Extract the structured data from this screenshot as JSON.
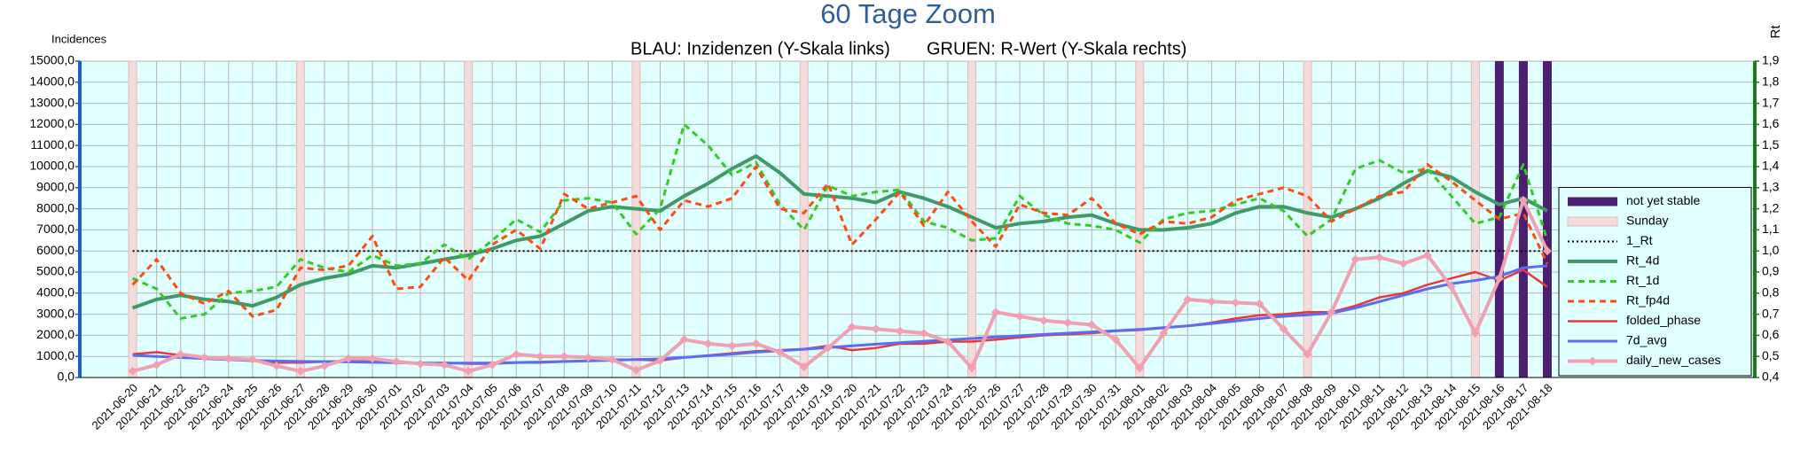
{
  "chart_data": {
    "type": "line",
    "title": "60 Tage Zoom",
    "subtitles": [
      "BLAU: Inzidenzen (Y-Skala links)",
      "GRUEN: R-Wert (Y-Skala rechts)"
    ],
    "y_label": "Incidences",
    "y2_label": "Rt",
    "categories": [
      "2021-06-20",
      "2021-06-21",
      "2021-06-22",
      "2021-06-23",
      "2021-06-24",
      "2021-06-25",
      "2021-06-26",
      "2021-06-27",
      "2021-06-28",
      "2021-06-29",
      "2021-06-30",
      "2021-07-01",
      "2021-07-02",
      "2021-07-03",
      "2021-07-04",
      "2021-07-05",
      "2021-07-06",
      "2021-07-07",
      "2021-07-08",
      "2021-07-09",
      "2021-07-10",
      "2021-07-11",
      "2021-07-12",
      "2021-07-13",
      "2021-07-14",
      "2021-07-15",
      "2021-07-16",
      "2021-07-17",
      "2021-07-18",
      "2021-07-19",
      "2021-07-20",
      "2021-07-21",
      "2021-07-22",
      "2021-07-23",
      "2021-07-24",
      "2021-07-25",
      "2021-07-26",
      "2021-07-27",
      "2021-07-28",
      "2021-07-29",
      "2021-07-30",
      "2021-07-31",
      "2021-08-01",
      "2021-08-02",
      "2021-08-03",
      "2021-08-04",
      "2021-08-05",
      "2021-08-06",
      "2021-08-07",
      "2021-08-08",
      "2021-08-09",
      "2021-08-10",
      "2021-08-11",
      "2021-08-12",
      "2021-08-13",
      "2021-08-14",
      "2021-08-15",
      "2021-08-16",
      "2021-08-17",
      "2021-08-18"
    ],
    "ylim": [
      0,
      15000
    ],
    "yticks": [
      {
        "value": 0,
        "label": "0,0"
      },
      {
        "value": 1000,
        "label": "1000,0"
      },
      {
        "value": 2000,
        "label": "2000,0"
      },
      {
        "value": 3000,
        "label": "3000,0"
      },
      {
        "value": 4000,
        "label": "4000,0"
      },
      {
        "value": 5000,
        "label": "5000,0"
      },
      {
        "value": 6000,
        "label": "6000,0"
      },
      {
        "value": 7000,
        "label": "7000,0"
      },
      {
        "value": 8000,
        "label": "8000,0"
      },
      {
        "value": 9000,
        "label": "9000,0"
      },
      {
        "value": 10000,
        "label": "10000,0"
      },
      {
        "value": 11000,
        "label": "11000,0"
      },
      {
        "value": 12000,
        "label": "12000,0"
      },
      {
        "value": 13000,
        "label": "13000,0"
      },
      {
        "value": 14000,
        "label": "14000,0"
      },
      {
        "value": 15000,
        "label": "15000,0"
      }
    ],
    "y2lim": [
      0.4,
      1.9
    ],
    "y2ticks": [
      {
        "value": 0.4,
        "label": "0,4"
      },
      {
        "value": 0.5,
        "label": "0,5"
      },
      {
        "value": 0.6,
        "label": "0,6"
      },
      {
        "value": 0.7,
        "label": "0,7"
      },
      {
        "value": 0.8,
        "label": "0,8"
      },
      {
        "value": 0.9,
        "label": "0,9"
      },
      {
        "value": 1.0,
        "label": "1,0"
      },
      {
        "value": 1.1,
        "label": "1,1"
      },
      {
        "value": 1.2,
        "label": "1,2"
      },
      {
        "value": 1.3,
        "label": "1,3"
      },
      {
        "value": 1.4,
        "label": "1,4"
      },
      {
        "value": 1.5,
        "label": "1,5"
      },
      {
        "value": 1.6,
        "label": "1,6"
      },
      {
        "value": 1.7,
        "label": "1,7"
      },
      {
        "value": 1.8,
        "label": "1,8"
      },
      {
        "value": 1.9,
        "label": "1,9"
      }
    ],
    "grid": true,
    "legend": "lower right",
    "series": [
      {
        "name": "not yet stable",
        "type": "bar",
        "color": "#4b1f6f",
        "values": [
          null,
          null,
          null,
          null,
          null,
          null,
          null,
          null,
          null,
          null,
          null,
          null,
          null,
          null,
          null,
          null,
          null,
          null,
          null,
          null,
          null,
          null,
          null,
          null,
          null,
          null,
          null,
          null,
          null,
          null,
          null,
          null,
          null,
          null,
          null,
          null,
          null,
          null,
          null,
          null,
          null,
          null,
          null,
          null,
          null,
          null,
          null,
          null,
          null,
          null,
          null,
          null,
          null,
          null,
          null,
          null,
          null,
          15000,
          15000,
          15000
        ]
      },
      {
        "name": "Sunday",
        "type": "bar",
        "color": "#f2dcdb",
        "values": [
          15000,
          null,
          null,
          null,
          null,
          null,
          null,
          15000,
          null,
          null,
          null,
          null,
          null,
          null,
          15000,
          null,
          null,
          null,
          null,
          null,
          null,
          15000,
          null,
          null,
          null,
          null,
          null,
          null,
          15000,
          null,
          null,
          null,
          null,
          null,
          null,
          15000,
          null,
          null,
          null,
          null,
          null,
          null,
          15000,
          null,
          null,
          null,
          null,
          null,
          null,
          15000,
          null,
          null,
          null,
          null,
          null,
          null,
          15000,
          null,
          null,
          null
        ]
      },
      {
        "name": "1_Rt",
        "type": "line",
        "axis": "y2",
        "color": "#000000",
        "dash": "dotted",
        "values": [
          1,
          1,
          1,
          1,
          1,
          1,
          1,
          1,
          1,
          1,
          1,
          1,
          1,
          1,
          1,
          1,
          1,
          1,
          1,
          1,
          1,
          1,
          1,
          1,
          1,
          1,
          1,
          1,
          1,
          1,
          1,
          1,
          1,
          1,
          1,
          1,
          1,
          1,
          1,
          1,
          1,
          1,
          1,
          1,
          1,
          1,
          1,
          1,
          1,
          1,
          1,
          1,
          1,
          1,
          1,
          1,
          1,
          1,
          1,
          1
        ]
      },
      {
        "name": "Rt_4d",
        "type": "line",
        "axis": "y2",
        "color": "#3f9a68",
        "width": 4,
        "values": [
          0.73,
          0.77,
          0.79,
          0.77,
          0.76,
          0.74,
          0.78,
          0.84,
          0.87,
          0.89,
          0.93,
          0.92,
          0.94,
          0.96,
          0.98,
          1.01,
          1.05,
          1.07,
          1.13,
          1.19,
          1.21,
          1.2,
          1.19,
          1.26,
          1.32,
          1.39,
          1.45,
          1.37,
          1.27,
          1.26,
          1.25,
          1.23,
          1.28,
          1.25,
          1.21,
          1.16,
          1.11,
          1.13,
          1.14,
          1.16,
          1.17,
          1.13,
          1.1,
          1.1,
          1.11,
          1.13,
          1.18,
          1.21,
          1.21,
          1.18,
          1.16,
          1.2,
          1.25,
          1.32,
          1.38,
          1.35,
          1.28,
          1.22,
          1.25,
          1.19
        ]
      },
      {
        "name": "Rt_1d",
        "type": "line",
        "axis": "y2",
        "color": "#33cc22",
        "dash": "dashed",
        "width": 3,
        "values": [
          0.87,
          0.82,
          0.68,
          0.7,
          0.8,
          0.81,
          0.83,
          0.96,
          0.92,
          0.9,
          0.98,
          0.93,
          0.94,
          1.03,
          0.96,
          1.05,
          1.15,
          1.09,
          1.24,
          1.25,
          1.23,
          1.08,
          1.2,
          1.6,
          1.5,
          1.36,
          1.42,
          1.22,
          1.1,
          1.31,
          1.26,
          1.28,
          1.29,
          1.14,
          1.11,
          1.05,
          1.06,
          1.26,
          1.17,
          1.13,
          1.12,
          1.1,
          1.04,
          1.15,
          1.18,
          1.19,
          1.22,
          1.25,
          1.19,
          1.07,
          1.15,
          1.39,
          1.43,
          1.37,
          1.39,
          1.26,
          1.13,
          1.16,
          1.41,
          1.05
        ]
      },
      {
        "name": "Rt_fp4d",
        "type": "line",
        "axis": "y2",
        "color": "#ff4a10",
        "dash": "dashed",
        "width": 3,
        "values": [
          0.84,
          0.96,
          0.8,
          0.75,
          0.81,
          0.69,
          0.72,
          0.92,
          0.91,
          0.93,
          1.07,
          0.82,
          0.83,
          0.97,
          0.86,
          1.03,
          1.1,
          1.01,
          1.27,
          1.2,
          1.23,
          1.26,
          1.1,
          1.24,
          1.21,
          1.25,
          1.4,
          1.2,
          1.18,
          1.32,
          1.03,
          1.15,
          1.28,
          1.12,
          1.28,
          1.14,
          1.02,
          1.22,
          1.18,
          1.17,
          1.25,
          1.13,
          1.08,
          1.14,
          1.13,
          1.16,
          1.24,
          1.27,
          1.3,
          1.26,
          1.14,
          1.2,
          1.26,
          1.28,
          1.41,
          1.33,
          1.24,
          1.15,
          1.18,
          0.94
        ]
      },
      {
        "name": "folded_phase",
        "type": "line",
        "color": "#e8383d",
        "width": 2.5,
        "values": [
          1100,
          1200,
          1050,
          950,
          900,
          850,
          700,
          700,
          750,
          780,
          750,
          700,
          650,
          700,
          650,
          650,
          700,
          700,
          750,
          800,
          850,
          850,
          800,
          950,
          1050,
          1150,
          1250,
          1300,
          1350,
          1500,
          1300,
          1400,
          1600,
          1600,
          1700,
          1700,
          1800,
          1900,
          2000,
          2050,
          2100,
          2200,
          2250,
          2350,
          2450,
          2600,
          2800,
          2950,
          3000,
          3100,
          3100,
          3400,
          3800,
          4000,
          4400,
          4700,
          5000,
          4600,
          5100,
          4300
        ]
      },
      {
        "name": "7d_avg",
        "type": "line",
        "color": "#5b6cf0",
        "width": 3,
        "values": [
          1050,
          1000,
          950,
          900,
          850,
          800,
          780,
          760,
          750,
          740,
          720,
          700,
          690,
          680,
          680,
          690,
          710,
          730,
          760,
          790,
          820,
          850,
          880,
          950,
          1030,
          1110,
          1200,
          1270,
          1340,
          1420,
          1500,
          1580,
          1650,
          1720,
          1780,
          1850,
          1920,
          1980,
          2040,
          2100,
          2160,
          2220,
          2280,
          2360,
          2450,
          2560,
          2680,
          2800,
          2900,
          2970,
          3050,
          3300,
          3600,
          3900,
          4200,
          4450,
          4600,
          4800,
          5200,
          5300
        ]
      },
      {
        "name": "daily_new_cases",
        "type": "line",
        "color": "#f0a0b0",
        "width": 4,
        "marker": "diamond",
        "values": [
          300,
          600,
          1100,
          950,
          900,
          850,
          550,
          300,
          550,
          900,
          900,
          750,
          650,
          600,
          300,
          600,
          1100,
          1000,
          1000,
          950,
          850,
          350,
          800,
          1800,
          1600,
          1500,
          1600,
          1200,
          500,
          1400,
          2400,
          2300,
          2200,
          2100,
          1700,
          450,
          3100,
          2900,
          2700,
          2600,
          2500,
          1800,
          450,
          2100,
          3700,
          3600,
          3550,
          3500,
          2300,
          1100,
          3100,
          5600,
          5700,
          5400,
          5800,
          4300,
          2100,
          4700,
          8400,
          6000
        ]
      }
    ]
  }
}
